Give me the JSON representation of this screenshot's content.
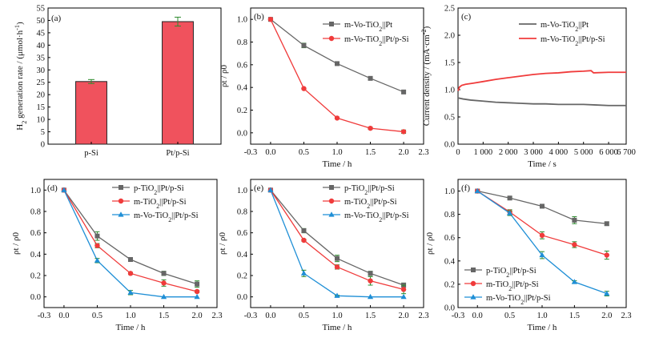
{
  "colors": {
    "gray": "#666666",
    "red": "#f03b3b",
    "blue": "#1f8fd6",
    "bar": "#f0525d",
    "err": "#2e8b2e"
  },
  "chart_data": [
    {
      "panel": "(a)",
      "type": "bar",
      "categories": [
        "p-Si",
        "Pt/p-Si"
      ],
      "values": [
        25.3,
        49.5
      ],
      "errors": [
        0.8,
        1.8
      ],
      "ylabel": "H₂ generation rate / (μmol·h⁻¹)",
      "xlabel": "",
      "ylim": [
        0,
        55
      ],
      "yticks": [
        0,
        5,
        10,
        15,
        20,
        25,
        30,
        35,
        40,
        45,
        50,
        55
      ]
    },
    {
      "panel": "(b)",
      "type": "line",
      "xlabel": "Time / h",
      "ylabel": "ρt / ρ0",
      "xlim": [
        -0.3,
        2.3
      ],
      "ylim": [
        -0.1,
        1.1
      ],
      "xticks": [
        "-0.3",
        "0.0",
        "0.5",
        "1.0",
        "1.5",
        "2.0",
        "2.3"
      ],
      "yticks": [
        "0.0",
        "0.2",
        "0.4",
        "0.6",
        "0.8",
        "1.0"
      ],
      "legend_loc": "top-right",
      "series": [
        {
          "name": "m-Vo-TiO₂||Pt",
          "color": "gray",
          "marker": "square",
          "x": [
            0,
            0.5,
            1.0,
            1.5,
            2.0
          ],
          "y": [
            1.0,
            0.77,
            0.61,
            0.48,
            0.36
          ],
          "err": [
            0,
            0.02,
            0.015,
            0.01,
            0.01
          ]
        },
        {
          "name": "m-Vo-TiO₂||Pt/p-Si",
          "color": "red",
          "marker": "circle",
          "x": [
            0,
            0.5,
            1.0,
            1.5,
            2.0
          ],
          "y": [
            1.0,
            0.39,
            0.13,
            0.04,
            0.01
          ],
          "err": [
            0,
            0.005,
            0.005,
            0.01,
            0.015
          ]
        }
      ]
    },
    {
      "panel": "(c)",
      "type": "line",
      "xlabel": "Time / s",
      "ylabel": "Current density / (mA·cm⁻²)",
      "xlim": [
        0,
        6700
      ],
      "ylim": [
        0,
        2.5
      ],
      "xticks": [
        "0",
        "1 000",
        "2 000",
        "3 000",
        "4 000",
        "5 000",
        "6 000",
        "6 700"
      ],
      "xtick_values": [
        0,
        1000,
        2000,
        3000,
        4000,
        5000,
        6000,
        6700
      ],
      "yticks": [
        "0.0",
        "0.5",
        "1.0",
        "1.5",
        "2.0",
        "2.5"
      ],
      "legend_loc": "top-right",
      "series": [
        {
          "name": "m-Vo-TiO₂||Pt",
          "color": "gray",
          "x": [
            0,
            200,
            500,
            1000,
            1500,
            2000,
            2500,
            3000,
            3500,
            4000,
            4500,
            5000,
            5500,
            6000,
            6700
          ],
          "y": [
            0.85,
            0.83,
            0.81,
            0.79,
            0.77,
            0.76,
            0.75,
            0.74,
            0.74,
            0.73,
            0.73,
            0.73,
            0.72,
            0.71,
            0.71
          ]
        },
        {
          "name": "m-Vo-TiO₂||Pt/p-Si",
          "color": "red",
          "x": [
            0,
            60,
            150,
            300,
            600,
            1000,
            1500,
            2000,
            2500,
            3000,
            3500,
            4000,
            4500,
            5000,
            5300,
            5400,
            6000,
            6700
          ],
          "y": [
            0.98,
            1.05,
            1.08,
            1.1,
            1.12,
            1.15,
            1.19,
            1.22,
            1.25,
            1.28,
            1.3,
            1.31,
            1.33,
            1.34,
            1.35,
            1.31,
            1.32,
            1.32
          ]
        }
      ]
    },
    {
      "panel": "(d)",
      "type": "line",
      "xlabel": "Time / h",
      "ylabel": "ρt / ρ0",
      "xlim": [
        -0.3,
        2.3
      ],
      "ylim": [
        -0.1,
        1.1
      ],
      "xticks": [
        "-0.3",
        "0.0",
        "0.5",
        "1.0",
        "1.5",
        "2.0",
        "2.3"
      ],
      "yticks": [
        "0.0",
        "0.2",
        "0.4",
        "0.6",
        "0.8",
        "1.0"
      ],
      "legend_loc": "top-right",
      "series": [
        {
          "name": "p-TiO₂||Pt/p-Si",
          "color": "gray",
          "marker": "square",
          "x": [
            0,
            0.5,
            1.0,
            1.5,
            2.0
          ],
          "y": [
            1.0,
            0.57,
            0.35,
            0.22,
            0.12
          ],
          "err": [
            0,
            0.04,
            0.015,
            0.02,
            0.03
          ]
        },
        {
          "name": "m-TiO₂||Pt/p-Si",
          "color": "red",
          "marker": "circle",
          "x": [
            0,
            0.5,
            1.0,
            1.5,
            2.0
          ],
          "y": [
            1.0,
            0.48,
            0.22,
            0.13,
            0.05
          ],
          "err": [
            0,
            0.02,
            0.01,
            0.03,
            0.01
          ]
        },
        {
          "name": "m-Vo-TiO₂||Pt/p-Si",
          "color": "blue",
          "marker": "triangle",
          "x": [
            0,
            0.5,
            1.0,
            1.5,
            2.0
          ],
          "y": [
            1.0,
            0.34,
            0.04,
            0.0,
            0.0
          ],
          "err": [
            0,
            0.02,
            0.02,
            0,
            0
          ]
        }
      ]
    },
    {
      "panel": "(e)",
      "type": "line",
      "xlabel": "Time / h",
      "ylabel": "ρt / ρ0",
      "xlim": [
        -0.3,
        2.3
      ],
      "ylim": [
        -0.1,
        1.1
      ],
      "xticks": [
        "-0.3",
        "0.0",
        "0.5",
        "1.0",
        "1.5",
        "2.0",
        "2.3"
      ],
      "yticks": [
        "0.0",
        "0.2",
        "0.4",
        "0.6",
        "0.8",
        "1.0"
      ],
      "legend_loc": "top-right",
      "series": [
        {
          "name": "p-TiO₂||Pt/p-Si",
          "color": "gray",
          "marker": "square",
          "x": [
            0,
            0.5,
            1.0,
            1.5,
            2.0
          ],
          "y": [
            1.0,
            0.62,
            0.36,
            0.22,
            0.11
          ],
          "err": [
            0,
            0.02,
            0.03,
            0.02,
            0.02
          ]
        },
        {
          "name": "m-TiO₂||Pt/p-Si",
          "color": "red",
          "marker": "circle",
          "x": [
            0,
            0.5,
            1.0,
            1.5,
            2.0
          ],
          "y": [
            1.0,
            0.53,
            0.28,
            0.15,
            0.07
          ],
          "err": [
            0,
            0.01,
            0.02,
            0.04,
            0.04
          ]
        },
        {
          "name": "m-Vo-TiO₂||Pt/p-Si",
          "color": "blue",
          "marker": "triangle",
          "x": [
            0,
            0.5,
            1.0,
            1.5,
            2.0
          ],
          "y": [
            1.0,
            0.22,
            0.01,
            0.0,
            0.0
          ],
          "err": [
            0,
            0.03,
            0.005,
            0,
            0
          ]
        }
      ]
    },
    {
      "panel": "(f)",
      "type": "line",
      "xlabel": "Time / h",
      "ylabel": "ρt / ρ0",
      "xlim": [
        -0.3,
        2.3
      ],
      "ylim": [
        0,
        1.1
      ],
      "xticks": [
        "-0.3",
        "0.0",
        "0.5",
        "1.0",
        "1.5",
        "2.0",
        "2.3"
      ],
      "yticks": [
        "0.0",
        "0.2",
        "0.4",
        "0.6",
        "0.8",
        "1.0"
      ],
      "legend_loc": "bottom-left",
      "series": [
        {
          "name": "p-TiO₂||Pt/p-Si",
          "color": "gray",
          "marker": "square",
          "x": [
            0,
            0.5,
            1.0,
            1.5,
            2.0
          ],
          "y": [
            1.0,
            0.94,
            0.87,
            0.75,
            0.72
          ],
          "err": [
            0,
            0.01,
            0.015,
            0.03,
            0.015
          ]
        },
        {
          "name": "m-TiO₂||Pt/p-Si",
          "color": "red",
          "marker": "circle",
          "x": [
            0,
            0.5,
            1.0,
            1.5,
            2.0
          ],
          "y": [
            1.0,
            0.82,
            0.62,
            0.54,
            0.45
          ],
          "err": [
            0,
            0.02,
            0.03,
            0.025,
            0.035
          ]
        },
        {
          "name": "m-Vo-TiO₂||Pt/p-Si",
          "color": "blue",
          "marker": "triangle",
          "x": [
            0,
            0.5,
            1.0,
            1.5,
            2.0
          ],
          "y": [
            1.0,
            0.81,
            0.45,
            0.22,
            0.12
          ],
          "err": [
            0,
            0.02,
            0.03,
            0.01,
            0.02
          ]
        }
      ]
    }
  ]
}
